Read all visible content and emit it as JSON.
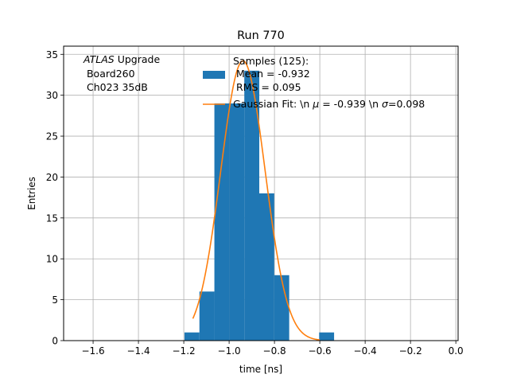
{
  "chart_data": {
    "type": "bar",
    "title": "Run 770",
    "xlabel": "time [ns]",
    "ylabel": "Entries",
    "xlim": [
      -1.73,
      0.01
    ],
    "ylim": [
      0,
      36
    ],
    "grid": true,
    "legend_position": "top-center",
    "x_ticks": [
      -1.6,
      -1.4,
      -1.2,
      -1.0,
      -0.8,
      -0.6,
      -0.4,
      -0.2,
      0.0
    ],
    "x_tick_labels": [
      "−1.6",
      "−1.4",
      "−1.2",
      "−1.0",
      "−0.8",
      "−0.6",
      "−0.4",
      "−0.2",
      "0.0"
    ],
    "y_ticks": [
      0,
      5,
      10,
      15,
      20,
      25,
      30,
      35
    ],
    "y_tick_labels": [
      "0",
      "5",
      "10",
      "15",
      "20",
      "25",
      "30",
      "35"
    ],
    "histogram": {
      "bin_edges": [
        -1.197,
        -1.131,
        -1.065,
        -0.999,
        -0.933,
        -0.867,
        -0.801,
        -0.735,
        -0.669,
        -0.603,
        -0.537
      ],
      "counts": [
        1,
        6,
        29,
        29,
        33,
        18,
        8,
        0,
        0,
        1
      ],
      "color": "#1f77b4"
    },
    "gaussian_fit": {
      "mu": -0.939,
      "sigma": 0.098,
      "amplitude": 34.2,
      "x_range": [
        -1.16,
        -0.6
      ],
      "color": "#ff7f0e"
    },
    "annotation": {
      "atlas": "ATLAS",
      "upgrade": " Upgrade",
      "line2": " Board260",
      "line3": " Ch023 35dB"
    },
    "legend": {
      "samples_line1": "Samples (125):",
      "samples_line2": " Mean = -0.932",
      "samples_line3": " RMS = 0.095",
      "fit_prefix": "Gaussian Fit: \\n ",
      "fit_mu_symbol": "μ",
      "fit_middle": " = -0.939 \\n ",
      "fit_sigma_symbol": "σ",
      "fit_suffix": "=0.098"
    }
  }
}
